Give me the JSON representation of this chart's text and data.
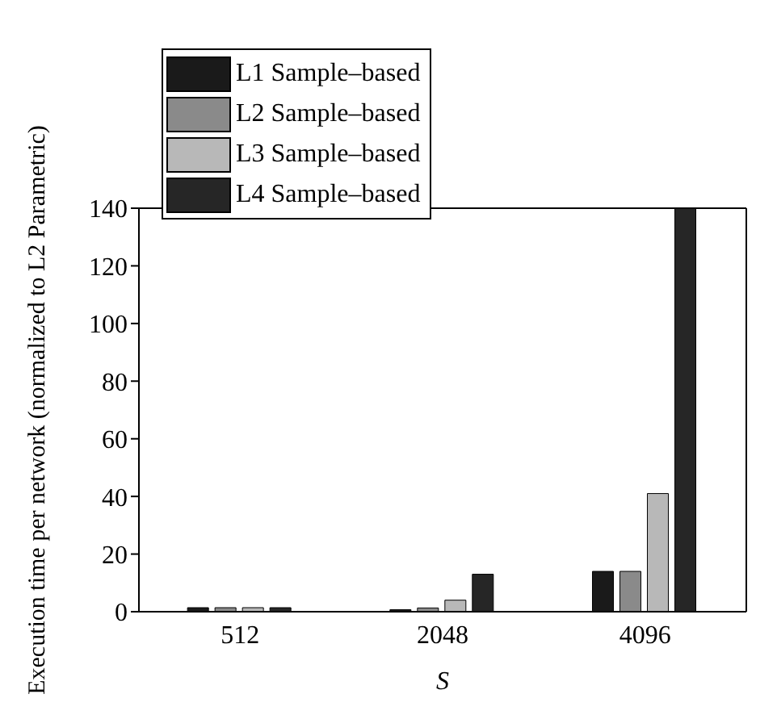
{
  "chart_data": {
    "type": "bar",
    "xlabel": "S",
    "ylabel": "Execution time per network (normalized to L2 Parametric)",
    "categories": [
      "512",
      "2048",
      "4096"
    ],
    "series": [
      {
        "name": "L1 Sample–based",
        "color": "#1a1a1a",
        "values": [
          1.4,
          0.7,
          14
        ]
      },
      {
        "name": "L2 Sample–based",
        "color": "#8a8a8a",
        "values": [
          1.4,
          1.3,
          14
        ]
      },
      {
        "name": "L3 Sample–based",
        "color": "#b8b8b8",
        "values": [
          1.4,
          4,
          41
        ]
      },
      {
        "name": "L4 Sample–based",
        "color": "#262626",
        "values": [
          1.4,
          13,
          140
        ]
      }
    ],
    "ylim": [
      0,
      140
    ],
    "yticks": [
      0,
      20,
      40,
      60,
      80,
      100,
      120,
      140
    ],
    "legend": "top left",
    "grid": false
  }
}
